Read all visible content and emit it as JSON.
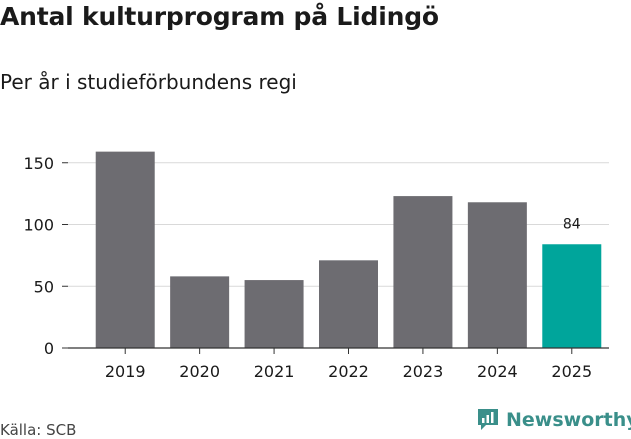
{
  "header": {
    "title": "Antal kulturprogram på Lidingö",
    "subtitle": "Per år i studieförbundens regi"
  },
  "footer": {
    "source": "Källa: SCB",
    "brand": "Newsworthy"
  },
  "colors": {
    "bar": "#6d6c71",
    "highlight": "#00a59b",
    "grid": "#d9d9d9",
    "axis": "#333333",
    "brand": "#3a8f8a"
  },
  "chart_data": {
    "type": "bar",
    "title": "Antal kulturprogram på Lidingö",
    "subtitle": "Per år i studieförbundens regi",
    "categories": [
      "2019",
      "2020",
      "2021",
      "2022",
      "2023",
      "2024",
      "2025"
    ],
    "values": [
      159,
      58,
      55,
      71,
      123,
      118,
      84
    ],
    "highlight_index": 6,
    "data_labels": [
      null,
      null,
      null,
      null,
      null,
      null,
      "84"
    ],
    "yticks": [
      0,
      50,
      100,
      150
    ],
    "ylim": [
      0,
      170
    ],
    "xlabel": "",
    "ylabel": "",
    "grid": true,
    "legend": "none"
  }
}
